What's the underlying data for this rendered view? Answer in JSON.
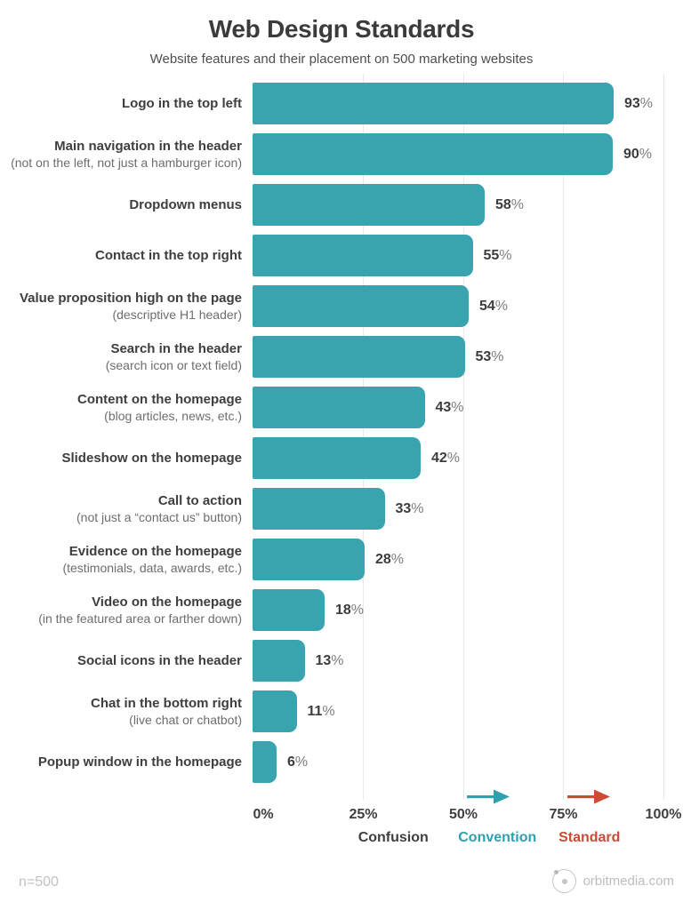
{
  "header": {
    "title": "Web Design Standards",
    "subtitle": "Website features and their placement on 500 marketing websites"
  },
  "chart_data": {
    "type": "bar",
    "orientation": "horizontal",
    "title": "Web Design Standards",
    "subtitle": "Website features and their placement on 500 marketing websites",
    "unit": "%",
    "xlim": [
      0,
      100
    ],
    "x_ticks": [
      "0%",
      "25%",
      "50%",
      "75%",
      "100%"
    ],
    "grid": true,
    "bar_color": "#3aa3b0",
    "rows": [
      {
        "label": "Logo in the top left",
        "sublabel": "",
        "value": 93
      },
      {
        "label": "Main navigation in the header",
        "sublabel": "(not on the left, not just a hamburger icon)",
        "value": 90
      },
      {
        "label": "Dropdown menus",
        "sublabel": "",
        "value": 58
      },
      {
        "label": "Contact in the top right",
        "sublabel": "",
        "value": 55
      },
      {
        "label": "Value proposition high on the page",
        "sublabel": "(descriptive H1 header)",
        "value": 54
      },
      {
        "label": "Search in the header",
        "sublabel": "(search icon or text field)",
        "value": 53
      },
      {
        "label": "Content on the homepage",
        "sublabel": "(blog articles, news, etc.)",
        "value": 43
      },
      {
        "label": "Slideshow on the homepage",
        "sublabel": "",
        "value": 42
      },
      {
        "label": "Call to action",
        "sublabel": "(not just a “contact us” button)",
        "value": 33
      },
      {
        "label": "Evidence on the homepage",
        "sublabel": "(testimonials, data, awards, etc.)",
        "value": 28
      },
      {
        "label": "Video on the homepage",
        "sublabel": "(in the featured area or farther down)",
        "value": 18
      },
      {
        "label": "Social icons in the header",
        "sublabel": "",
        "value": 13
      },
      {
        "label": "Chat in the bottom right",
        "sublabel": "(live chat or chatbot)",
        "value": 11
      },
      {
        "label": "Popup window in the homepage",
        "sublabel": "",
        "value": 6
      }
    ],
    "axis_annotations": [
      {
        "label": "Confusion",
        "color": "#3f3f3f",
        "arrow": false,
        "arrow_start_pct": null,
        "center_pct": 32.5
      },
      {
        "label": "Convention",
        "color": "#2fa0ae",
        "arrow": true,
        "arrow_start_pct": 50,
        "center_pct": 58.5
      },
      {
        "label": "Standard",
        "color": "#cc4b35",
        "arrow": true,
        "arrow_start_pct": 75,
        "center_pct": 81.5
      }
    ],
    "legend_position": "bottom"
  },
  "footer": {
    "sample_size": "n=500",
    "brand": "orbitmedia.com"
  }
}
